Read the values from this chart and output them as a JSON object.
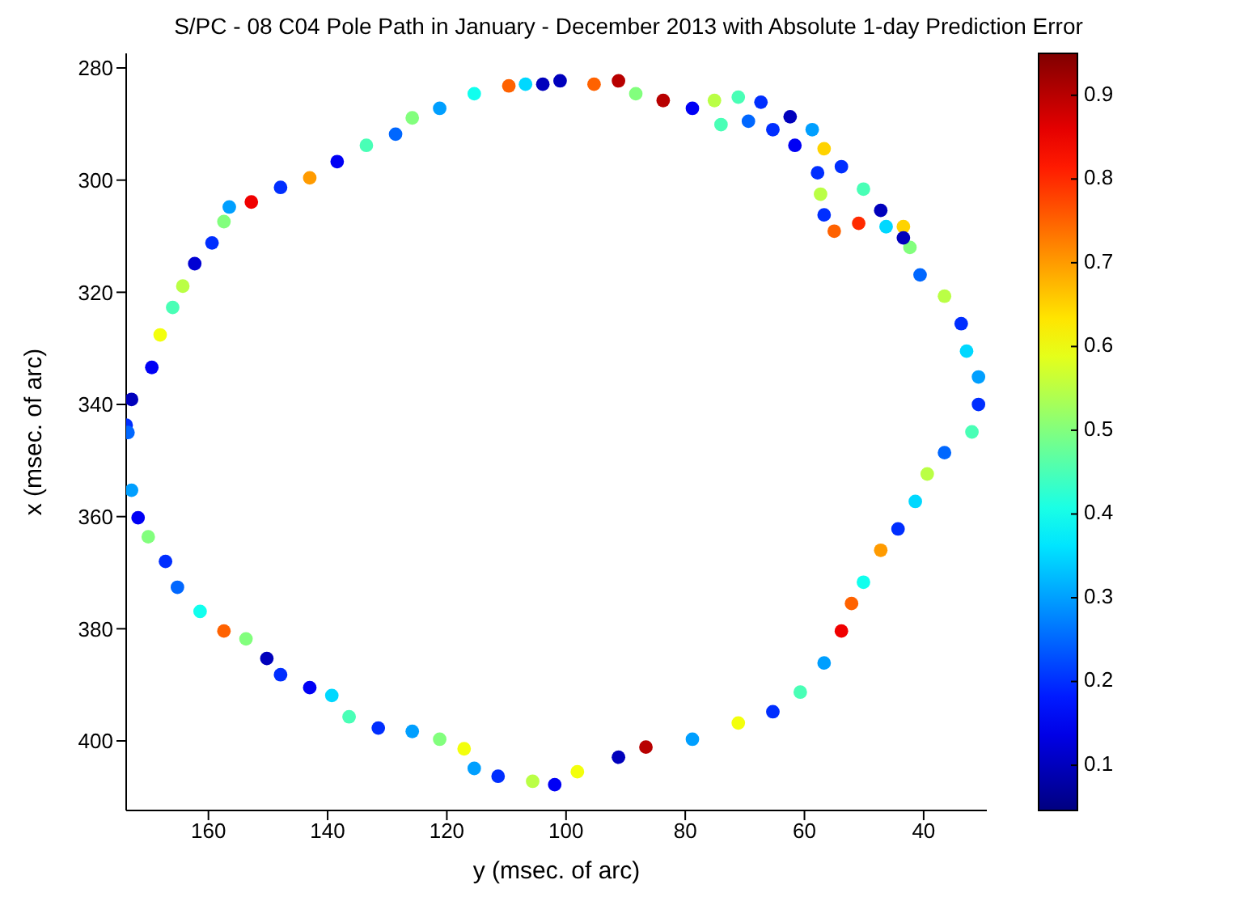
{
  "chart_data": {
    "type": "scatter",
    "title": "S/PC - 08 C04 Pole Path in January - December 2013 with Absolute 1-day Prediction Error",
    "xlabel": "y (msec. of arc)",
    "ylabel": "x (msec. of arc)",
    "x": [
      173.8,
      172.9,
      169.5,
      168.1,
      166,
      164.3,
      162.3,
      159.4,
      157.4,
      156.5,
      152.8,
      147.9,
      143,
      138.4,
      133.5,
      128.6,
      125.8,
      121.2,
      115.4,
      109.6,
      103.9,
      106.8,
      101,
      95.3,
      91.2,
      88.3,
      83.7,
      78.8,
      75.1,
      71.1,
      67.3,
      62.4,
      58.7,
      56.7,
      53.8,
      50.1,
      47.2,
      43.4,
      42.3,
      40.6,
      36.5,
      33.7,
      32.8,
      30.8,
      30.8,
      74,
      69.4,
      65.3,
      61.6,
      57.8,
      57.3,
      56.7,
      55,
      50.9,
      46.3,
      43.4,
      173.5,
      172.9,
      171.8,
      170.1,
      167.2,
      165.2,
      161.4,
      157.4,
      153.7,
      150.2,
      147.9,
      143,
      139.3,
      136.4,
      131.5,
      125.8,
      121.2,
      117.1,
      115.4,
      111.4,
      105.6,
      101.9,
      98.1,
      91.2,
      86.6,
      78.8,
      71.1,
      65.3,
      60.7,
      56.7,
      53.8,
      52.1,
      50.1,
      47.2,
      44.3,
      41.4,
      39.4,
      36.5,
      31.9
    ],
    "values": [
      343.7,
      339.1,
      333.4,
      327.6,
      322.7,
      318.9,
      314.9,
      311.2,
      307.4,
      304.8,
      303.9,
      301.3,
      299.6,
      296.7,
      293.8,
      291.8,
      288.9,
      287.2,
      284.6,
      283.2,
      282.9,
      282.9,
      282.3,
      282.9,
      282.3,
      284.6,
      285.8,
      287.2,
      285.8,
      285.2,
      286.1,
      288.7,
      291,
      294.4,
      297.6,
      301.6,
      305.4,
      308.3,
      312,
      316.9,
      320.7,
      325.6,
      330.5,
      335.1,
      340,
      290.1,
      289.5,
      291,
      293.8,
      298.7,
      302.5,
      306.2,
      309.1,
      307.7,
      308.3,
      310.3,
      345,
      355.3,
      360.2,
      363.6,
      368,
      372.6,
      376.9,
      380.4,
      381.8,
      385.3,
      388.2,
      390.5,
      391.9,
      395.7,
      397.7,
      398.3,
      399.7,
      401.4,
      404.9,
      406.3,
      407.2,
      407.8,
      405.5,
      402.9,
      401.1,
      399.7,
      396.8,
      394.8,
      391.3,
      386.1,
      380.4,
      375.5,
      371.7,
      366,
      362.2,
      357.3,
      352.4,
      348.6,
      344.9
    ],
    "cvalues": [
      0.2,
      0.1,
      0.15,
      0.6,
      0.45,
      0.55,
      0.12,
      0.2,
      0.5,
      0.3,
      0.85,
      0.2,
      0.7,
      0.15,
      0.45,
      0.25,
      0.5,
      0.3,
      0.4,
      0.75,
      0.1,
      0.35,
      0.1,
      0.75,
      0.9,
      0.5,
      0.9,
      0.15,
      0.55,
      0.45,
      0.2,
      0.1,
      0.3,
      0.65,
      0.2,
      0.45,
      0.1,
      0.65,
      0.5,
      0.25,
      0.55,
      0.2,
      0.35,
      0.3,
      0.2,
      0.45,
      0.25,
      0.2,
      0.15,
      0.2,
      0.55,
      0.2,
      0.75,
      0.8,
      0.35,
      0.1,
      0.25,
      0.3,
      0.15,
      0.5,
      0.2,
      0.25,
      0.4,
      0.75,
      0.5,
      0.1,
      0.2,
      0.15,
      0.35,
      0.45,
      0.2,
      0.3,
      0.5,
      0.6,
      0.3,
      0.2,
      0.55,
      0.15,
      0.6,
      0.1,
      0.9,
      0.3,
      0.6,
      0.2,
      0.45,
      0.3,
      0.85,
      0.75,
      0.4,
      0.7,
      0.2,
      0.35,
      0.55,
      0.25,
      0.45
    ],
    "xlim": [
      173.8,
      29.4
    ],
    "xticks": [
      160,
      140,
      120,
      100,
      80,
      60,
      40
    ],
    "ylim": [
      412.4,
      277.4
    ],
    "yticks": [
      280,
      300,
      320,
      340,
      360,
      380,
      400
    ],
    "clim": [
      0.046,
      0.95
    ],
    "cticks": [
      0.1,
      0.2,
      0.3,
      0.4,
      0.5,
      0.6,
      0.7,
      0.8,
      0.9
    ],
    "grid": false,
    "marker": "circle"
  }
}
